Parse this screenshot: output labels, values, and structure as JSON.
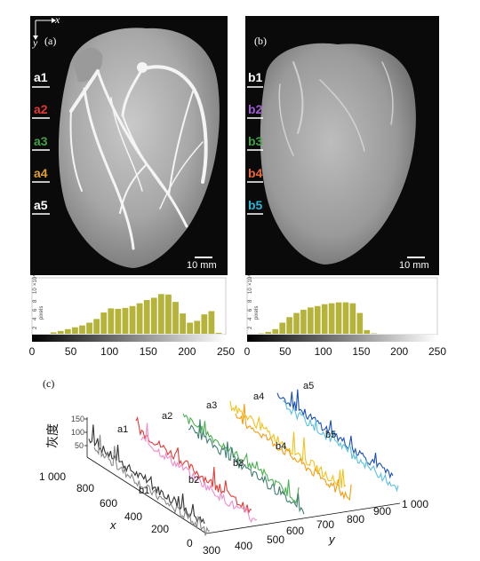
{
  "panels": {
    "a": {
      "label": "(a)",
      "axis_x": "x",
      "axis_y": "y",
      "scale_bar": "10 mm",
      "slice_labels": [
        {
          "text": "a1",
          "color": "#ffffff"
        },
        {
          "text": "a2",
          "color": "#e53935"
        },
        {
          "text": "a3",
          "color": "#43a047"
        },
        {
          "text": "a4",
          "color": "#e0a030"
        },
        {
          "text": "a5",
          "color": "#ffffff"
        }
      ],
      "hist_exponent": "×10⁴",
      "hist_ticks": [
        "2",
        "4",
        "6",
        "8",
        "10"
      ],
      "hist_unit": "pixels",
      "colorbar_ticks": [
        "0",
        "50",
        "100",
        "150",
        "200",
        "250"
      ]
    },
    "b": {
      "label": "(b)",
      "scale_bar": "10 mm",
      "slice_labels": [
        {
          "text": "b1",
          "color": "#ffffff"
        },
        {
          "text": "b2",
          "color": "#9c5bd0"
        },
        {
          "text": "b3",
          "color": "#43a047"
        },
        {
          "text": "b4",
          "color": "#e8663a"
        },
        {
          "text": "b5",
          "color": "#29b6d6"
        }
      ],
      "hist_exponent": "×10⁴",
      "hist_ticks": [
        "2",
        "4",
        "6",
        "8",
        "10"
      ],
      "hist_unit": "pixels",
      "colorbar_ticks": [
        "0",
        "50",
        "100",
        "150",
        "200",
        "250"
      ]
    },
    "c": {
      "label": "(c)",
      "z_label": "灰度",
      "x_label": "x",
      "y_label": "y",
      "x_ticks": [
        "1 000",
        "800",
        "600",
        "400",
        "200",
        "0"
      ],
      "y_ticks": [
        "300",
        "400",
        "500",
        "600",
        "700",
        "800",
        "900",
        "1 000"
      ],
      "z_ticks": [
        "150",
        "100",
        "50"
      ],
      "curves": [
        {
          "name": "a1",
          "color": "#333333"
        },
        {
          "name": "b1",
          "color": "#888888"
        },
        {
          "name": "a2",
          "color": "#e53935"
        },
        {
          "name": "b2",
          "color": "#f08cc8"
        },
        {
          "name": "a3",
          "color": "#4caf50"
        },
        {
          "name": "b3",
          "color": "#3f7f6f"
        },
        {
          "name": "a4",
          "color": "#f2c21b"
        },
        {
          "name": "b4",
          "color": "#f39c12"
        },
        {
          "name": "a5",
          "color": "#1a4fb4"
        },
        {
          "name": "b5",
          "color": "#5bc0de"
        }
      ]
    }
  },
  "chart_data": [
    {
      "type": "area",
      "title": "",
      "x": [
        0,
        10,
        20,
        30,
        40,
        50,
        60,
        70,
        80,
        90,
        100,
        110,
        120,
        130,
        140,
        150,
        160,
        170,
        180,
        190,
        200,
        210,
        220,
        230,
        240,
        250
      ],
      "values": [
        0,
        0,
        0.3,
        0.6,
        1.0,
        1.4,
        1.8,
        2.4,
        3.2,
        4.6,
        5.5,
        5.4,
        5.6,
        6.0,
        6.6,
        7.3,
        7.8,
        8.6,
        8.5,
        6.9,
        4.4,
        2.4,
        2.8,
        4.2,
        4.9,
        0.2
      ],
      "xlim": [
        0,
        250
      ],
      "ylim": [
        0,
        10
      ],
      "ylabel": "pixels"
    },
    {
      "type": "area",
      "title": "",
      "x": [
        0,
        10,
        20,
        30,
        40,
        50,
        60,
        70,
        80,
        90,
        100,
        110,
        120,
        130,
        140,
        150,
        160,
        170,
        180,
        190,
        200,
        210,
        220,
        230,
        240,
        250
      ],
      "values": [
        0,
        0.1,
        0.4,
        1.0,
        2.4,
        3.6,
        4.5,
        5.2,
        5.7,
        6.0,
        6.4,
        6.6,
        6.8,
        6.8,
        6.6,
        4.5,
        0.8,
        0.1,
        0,
        0,
        0,
        0,
        0,
        0,
        0,
        0
      ],
      "xlim": [
        0,
        250
      ],
      "ylim": [
        0,
        10
      ],
      "ylabel": "pixels"
    }
  ]
}
